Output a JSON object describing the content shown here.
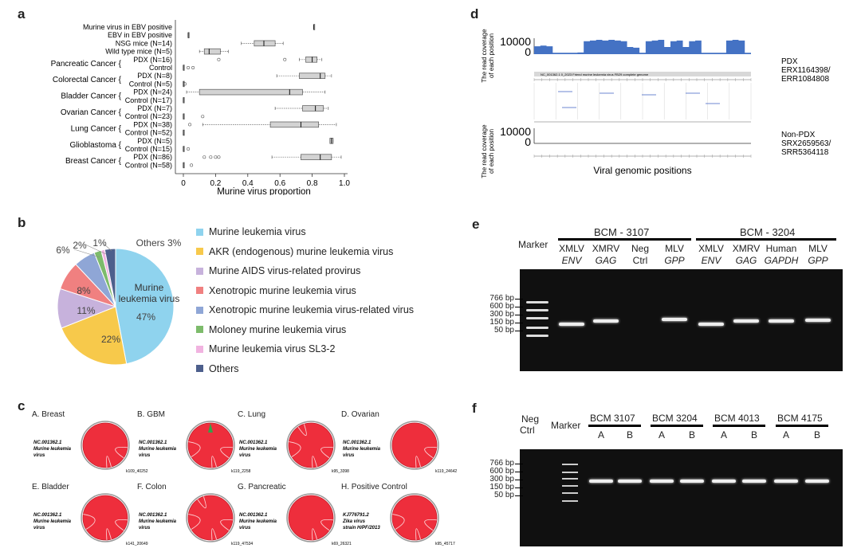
{
  "panels": {
    "a": {
      "label": "a",
      "xlabel": "Murine virus proportion",
      "ticks": [
        "0",
        "0.2",
        "0.4",
        "0.6",
        "0.8",
        "1.0"
      ],
      "rows": [
        {
          "group": "Murine virus in EBV positive",
          "sub": "",
          "min": 0.81,
          "q1": 0.81,
          "med": 0.81,
          "q3": 0.81,
          "max": 0.81,
          "outliers": []
        },
        {
          "group": "EBV in EBV positive",
          "sub": "",
          "min": 0.03,
          "q1": 0.03,
          "med": 0.03,
          "q3": 0.03,
          "max": 0.03,
          "outliers": []
        },
        {
          "group": "",
          "sub": "NSG mice (N=14)",
          "min": 0.36,
          "q1": 0.44,
          "med": 0.5,
          "q3": 0.57,
          "max": 0.62,
          "outliers": []
        },
        {
          "group": "",
          "sub": "Wild type mice (N=5)",
          "min": 0.1,
          "q1": 0.13,
          "med": 0.16,
          "q3": 0.23,
          "max": 0.28,
          "outliers": []
        },
        {
          "group": "Pancreatic Cancer {",
          "sub": "PDX (N=16)",
          "min": 0.72,
          "q1": 0.76,
          "med": 0.8,
          "q3": 0.83,
          "max": 0.86,
          "outliers": [
            0.22,
            0.63
          ]
        },
        {
          "group": "",
          "sub": "Control",
          "min": 0.0,
          "q1": 0.0,
          "med": 0.0,
          "q3": 0.0,
          "max": 0.0,
          "outliers": [
            0.03,
            0.06
          ]
        },
        {
          "group": "Colorectal Cancer {",
          "sub": "PDX (N=8)",
          "min": 0.58,
          "q1": 0.72,
          "med": 0.85,
          "q3": 0.88,
          "max": 0.92,
          "outliers": []
        },
        {
          "group": "",
          "sub": "Control (N=5)",
          "min": 0.0,
          "q1": 0.0,
          "med": 0.0,
          "q3": 0.0,
          "max": 0.0,
          "outliers": [
            0.01
          ]
        },
        {
          "group": "Bladder Cancer {",
          "sub": "PDX (N=24)",
          "min": 0.02,
          "q1": 0.1,
          "med": 0.66,
          "q3": 0.74,
          "max": 0.88,
          "outliers": []
        },
        {
          "group": "",
          "sub": "Control (N=17)",
          "min": 0.0,
          "q1": 0.0,
          "med": 0.0,
          "q3": 0.0,
          "max": 0.0,
          "outliers": []
        },
        {
          "group": "Ovarian Cancer {",
          "sub": "PDX (N=7)",
          "min": 0.57,
          "q1": 0.74,
          "med": 0.82,
          "q3": 0.87,
          "max": 0.9,
          "outliers": []
        },
        {
          "group": "",
          "sub": "Control (N=23)",
          "min": 0.0,
          "q1": 0.0,
          "med": 0.0,
          "q3": 0.0,
          "max": 0.0,
          "outliers": [
            0.12
          ]
        },
        {
          "group": "Lung Cancer {",
          "sub": "PDX (N=38)",
          "min": 0.12,
          "q1": 0.54,
          "med": 0.73,
          "q3": 0.84,
          "max": 0.95,
          "outliers": [
            0.04
          ]
        },
        {
          "group": "",
          "sub": "Control (N=52)",
          "min": 0.0,
          "q1": 0.0,
          "med": 0.0,
          "q3": 0.0,
          "max": 0.0,
          "outliers": []
        },
        {
          "group": "Glioblastoma {",
          "sub": "PDX (N=5)",
          "min": 0.91,
          "q1": 0.91,
          "med": 0.92,
          "q3": 0.93,
          "max": 0.93,
          "outliers": []
        },
        {
          "group": "",
          "sub": "Control (N=15)",
          "min": 0.0,
          "q1": 0.0,
          "med": 0.0,
          "q3": 0.0,
          "max": 0.0,
          "outliers": [
            0.03
          ]
        },
        {
          "group": "Breast Cancer {",
          "sub": "PDX (N=86)",
          "min": 0.55,
          "q1": 0.73,
          "med": 0.85,
          "q3": 0.92,
          "max": 0.98,
          "outliers": [
            0.13,
            0.17,
            0.2,
            0.22
          ]
        },
        {
          "group": "",
          "sub": "Control (N=58)",
          "min": 0.0,
          "q1": 0.0,
          "med": 0.0,
          "q3": 0.0,
          "max": 0.0,
          "outliers": [
            0.05
          ]
        }
      ]
    },
    "b": {
      "label": "b",
      "center_label": "Murine leukemia virus",
      "others_label": "Others 3%",
      "slices": [
        {
          "name": "Murine leukemia virus",
          "pct": 47,
          "label": "47%",
          "color": "#8fd3ee"
        },
        {
          "name": "AKR (endogenous) murine leukemia virus",
          "pct": 22,
          "label": "22%",
          "color": "#f7c94b"
        },
        {
          "name": "Murine AIDS virus-related provirus",
          "pct": 11,
          "label": "11%",
          "color": "#c7b2dc"
        },
        {
          "name": "Xenotropic murine leukemia virus",
          "pct": 8,
          "label": "8%",
          "color": "#f08080"
        },
        {
          "name": "Xenotropic murine leukemia virus-related virus",
          "pct": 6,
          "label": "6%",
          "color": "#8fa6d6"
        },
        {
          "name": "Moloney murine leukemia virus",
          "pct": 2,
          "label": "2%",
          "color": "#7dbb6b"
        },
        {
          "name": "Murine leukemia virus SL3-2",
          "pct": 1,
          "label": "1%",
          "color": "#f1b3e0"
        },
        {
          "name": "Others",
          "pct": 3,
          "label": "",
          "color": "#4d5f8c"
        }
      ]
    },
    "c": {
      "label": "c",
      "circles": [
        {
          "title": "A. Breast",
          "ref": "NC.001362.1 Murine leukemia virus",
          "tag": "k109_40252"
        },
        {
          "title": "B. GBM",
          "ref": "NC.001362.1 Murine leukemia virus",
          "tag": "k119_2258"
        },
        {
          "title": "C. Lung",
          "ref": "NC.001362.1 Murine leukemia virus",
          "tag": "k95_3398"
        },
        {
          "title": "D. Ovarian",
          "ref": "NC.001362.1 Murine leukemia virus",
          "tag": "k119_24642"
        },
        {
          "title": "E. Bladder",
          "ref": "NC.001362.1 Murine leukemia virus",
          "tag": "k141_20649"
        },
        {
          "title": "F. Colon",
          "ref": "NC.001362.1 Murine leukemia virus",
          "tag": "k119_47534"
        },
        {
          "title": "G. Pancreatic",
          "ref": "NC.001362.1 Murine leukemia virus",
          "tag": "k69_26321"
        },
        {
          "title": "H. Positive Control",
          "ref": "KJ776791.2 Zika virus strain H/PF/2013",
          "tag": "k95_45717"
        }
      ]
    },
    "d": {
      "label": "d",
      "ylabel_line1": "The read coverage",
      "ylabel_line2": "of each position",
      "ytick_max": "10000",
      "ytick_min": "0",
      "track_title": "NC_001362.1 0_2023 Friend murine leukemia virus FB29 complete genome",
      "sample1": [
        "PDX",
        "ERX1164398/",
        "ERR1084808"
      ],
      "sample2": [
        "Non-PDX",
        "SRX2659563/",
        "SRR5364118"
      ],
      "xlabel": "Viral genomic positions",
      "coverage": [
        0.55,
        0.6,
        0.55,
        0.1,
        0.1,
        0.1,
        0.1,
        0.12,
        0.9,
        0.95,
        1.0,
        0.95,
        1.0,
        0.95,
        0.9,
        0.5,
        0.45,
        0.1,
        0.9,
        0.95,
        1.0,
        0.5,
        0.9,
        0.95,
        0.5,
        0.9,
        0.95,
        0.1,
        0.1,
        0.1,
        0.1,
        0.95,
        1.0,
        0.95,
        0.1
      ]
    },
    "e": {
      "label": "e",
      "group1": "BCM - 3107",
      "group2": "BCM - 3204",
      "marker_label": "Marker",
      "lanes": [
        {
          "top": "XMLV",
          "bottom": "ENV"
        },
        {
          "top": "XMRV",
          "bottom": "GAG"
        },
        {
          "top": "Neg",
          "bottom": "Ctrl"
        },
        {
          "top": "MLV",
          "bottom": "GPP"
        },
        {
          "top": "XMLV",
          "bottom": "ENV"
        },
        {
          "top": "XMRV",
          "bottom": "GAG"
        },
        {
          "top": "Human",
          "bottom": "GAPDH"
        },
        {
          "top": "MLV",
          "bottom": "GPP"
        }
      ],
      "bp_labels": [
        "766 bp",
        "600 bp",
        "300 bp",
        "150 bp",
        "50 bp"
      ]
    },
    "f": {
      "label": "f",
      "neg_label_1": "Neg",
      "neg_label_2": "Ctrl",
      "marker_label": "Marker",
      "groups": [
        "BCM 3107",
        "BCM 3204",
        "BCM 4013",
        "BCM 4175"
      ],
      "lane_letters": [
        "A",
        "B",
        "A",
        "B",
        "A",
        "B",
        "A",
        "B"
      ],
      "bp_labels": [
        "766 bp",
        "600 bp",
        "300 bp",
        "150 bp",
        "50 bp"
      ]
    }
  }
}
